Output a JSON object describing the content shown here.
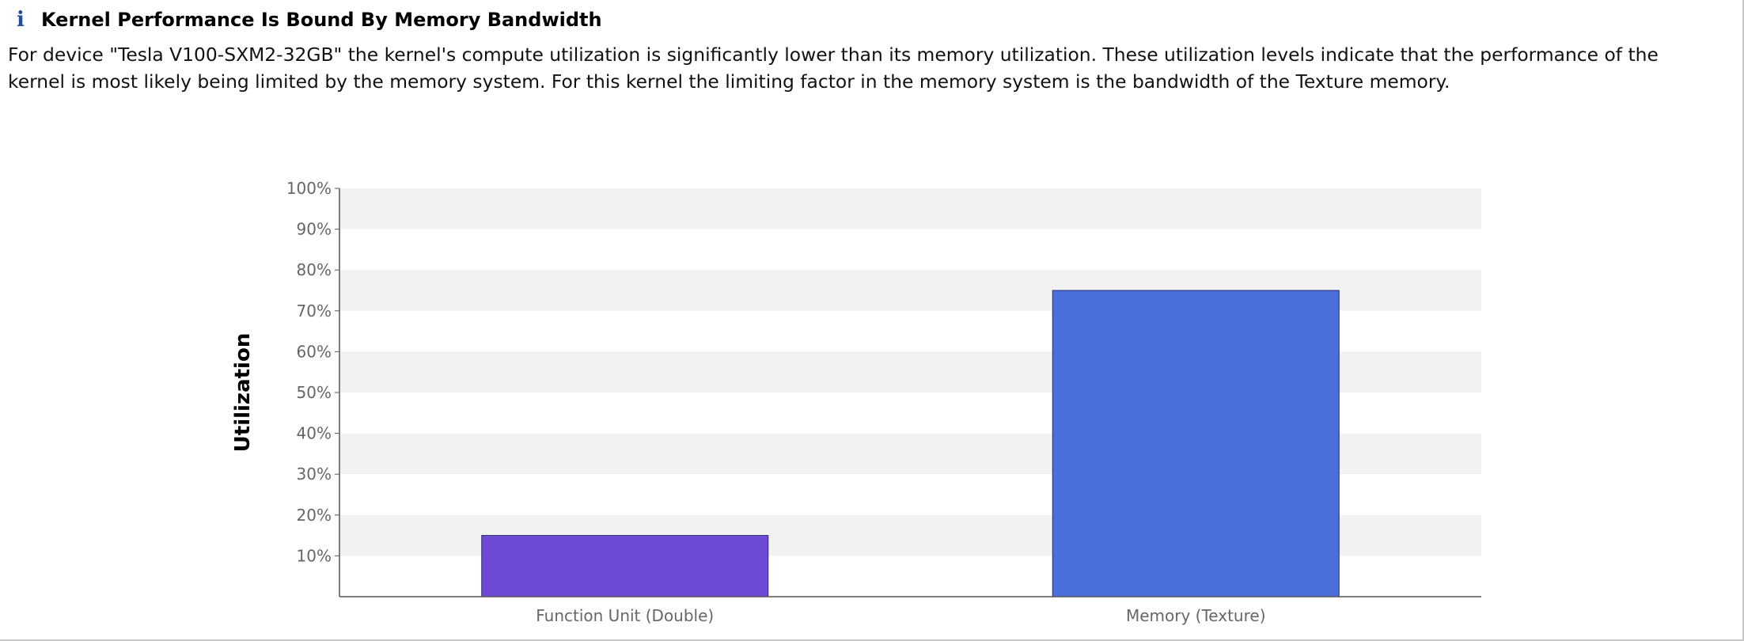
{
  "header": {
    "icon": "info-icon",
    "icon_glyph": "i",
    "title": "Kernel Performance Is Bound By Memory Bandwidth"
  },
  "description": "For device \"Tesla V100-SXM2-32GB\" the kernel's compute utilization is significantly lower than its memory utilization. These utilization levels indicate that the performance of the kernel is most likely being limited by the memory system. For this kernel the limiting factor in the memory system is the bandwidth of the Texture memory.",
  "colors": {
    "icon": "#1f4e9a",
    "band": "#f2f2f2",
    "axis": "#555555"
  },
  "chart_data": {
    "type": "bar",
    "title": "",
    "xlabel": "",
    "ylabel": "Utilization",
    "ylim": [
      0,
      100
    ],
    "yticks": [
      10,
      20,
      30,
      40,
      50,
      60,
      70,
      80,
      90,
      100
    ],
    "ytick_labels": [
      "10%",
      "20%",
      "30%",
      "40%",
      "50%",
      "60%",
      "70%",
      "80%",
      "90%",
      "100%"
    ],
    "grid": "alternating horizontal bands",
    "categories": [
      "Function Unit (Double)",
      "Memory (Texture)"
    ],
    "values": [
      15,
      75
    ],
    "bar_colors": [
      "#6f4ad6",
      "#4a6fdb"
    ],
    "legend": "none"
  }
}
